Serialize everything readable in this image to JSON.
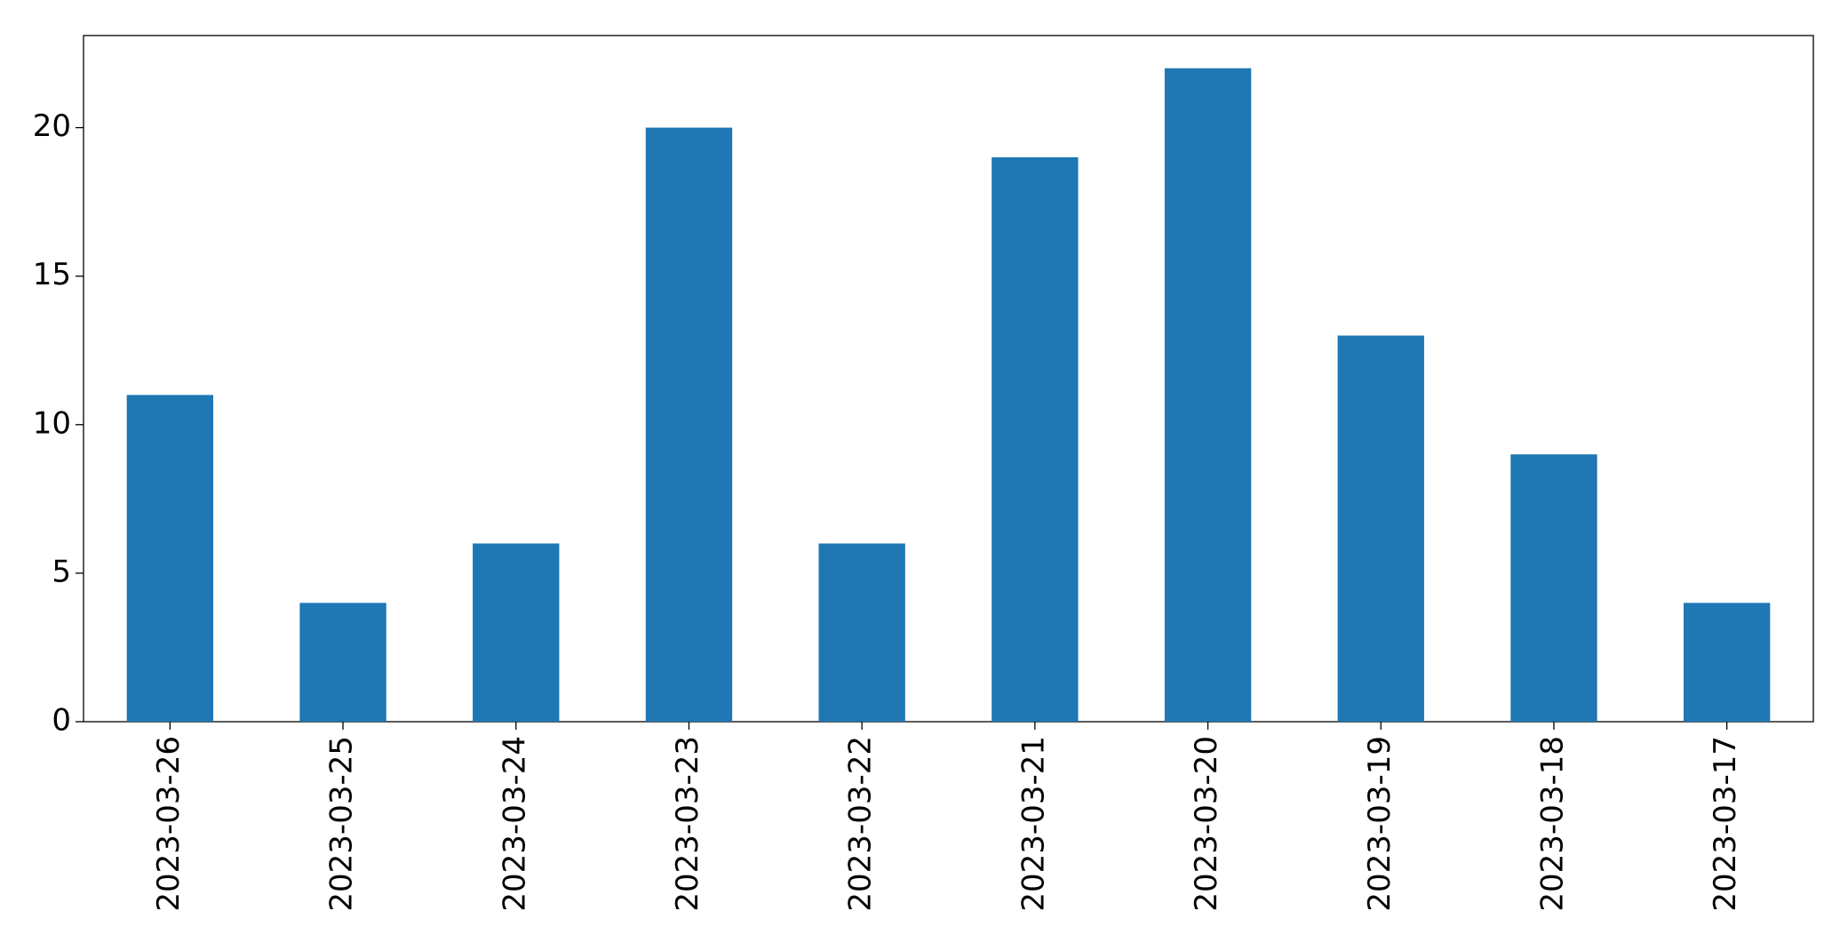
{
  "chart_data": {
    "type": "bar",
    "categories": [
      "2023-03-26",
      "2023-03-25",
      "2023-03-24",
      "2023-03-23",
      "2023-03-22",
      "2023-03-21",
      "2023-03-20",
      "2023-03-19",
      "2023-03-18",
      "2023-03-17"
    ],
    "values": [
      11,
      4,
      6,
      20,
      6,
      19,
      22,
      13,
      9,
      4
    ],
    "color": "#1f77b4",
    "ylim": [
      0,
      23.1
    ],
    "yticks": [
      0,
      5,
      10,
      15,
      20
    ],
    "grid": false
  }
}
